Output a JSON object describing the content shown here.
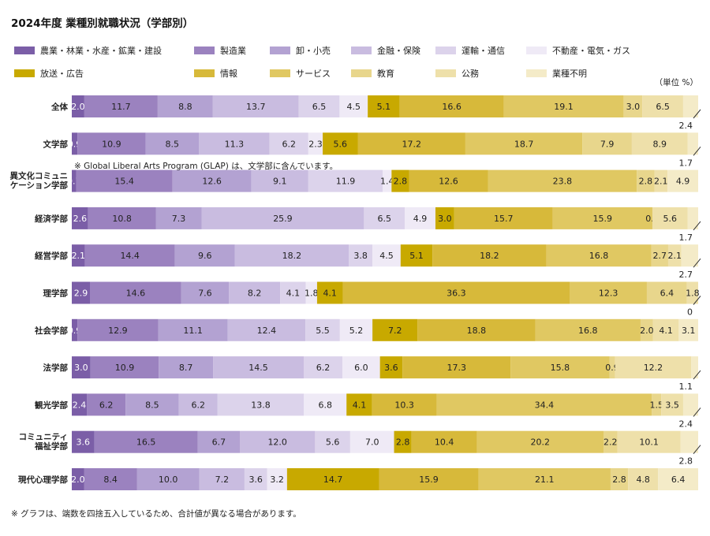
{
  "chart_data": {
    "type": "bar",
    "orientation": "horizontal",
    "stacked": true,
    "percent": true,
    "title": "2024年度 業種別就職状況（学部別）",
    "unit_label": "（単位 %）",
    "categories": [
      "全体",
      "文学部",
      "異文化コミュニケーション学部",
      "経済学部",
      "経営学部",
      "理学部",
      "社会学部",
      "法学部",
      "観光学部",
      "コミュニティ福祉学部",
      "現代心理学部"
    ],
    "category_lines": [
      [
        "全体"
      ],
      [
        "文学部"
      ],
      [
        "異文化コミュニ",
        "ケーション学部"
      ],
      [
        "経済学部"
      ],
      [
        "経営学部"
      ],
      [
        "理学部"
      ],
      [
        "社会学部"
      ],
      [
        "法学部"
      ],
      [
        "観光学部"
      ],
      [
        "コミュニティ",
        "福祉学部"
      ],
      [
        "現代心理学部"
      ]
    ],
    "series": [
      {
        "name": "農業・林業・水産・鉱業・建設",
        "color": "#7b5ea7",
        "text_color": "#ffffff",
        "values": [
          2.0,
          0.9,
          0.7,
          2.6,
          2.1,
          2.9,
          0.9,
          3.0,
          2.4,
          3.6,
          2.0
        ]
      },
      {
        "name": "製造業",
        "color": "#9b82bf",
        "text_color": "#222222",
        "values": [
          11.7,
          10.9,
          15.4,
          10.8,
          14.4,
          14.6,
          12.9,
          10.9,
          6.2,
          16.5,
          8.4
        ]
      },
      {
        "name": "卸・小売",
        "color": "#b3a2d2",
        "text_color": "#222222",
        "values": [
          8.8,
          8.5,
          12.6,
          7.3,
          9.6,
          7.6,
          11.1,
          8.7,
          8.5,
          6.7,
          10.0
        ]
      },
      {
        "name": "金融・保険",
        "color": "#c9bce0",
        "text_color": "#222222",
        "values": [
          13.7,
          11.3,
          9.1,
          25.9,
          18.2,
          8.2,
          12.4,
          14.5,
          6.2,
          12.0,
          7.2
        ]
      },
      {
        "name": "運輸・通信",
        "color": "#dcd3eb",
        "text_color": "#222222",
        "values": [
          6.5,
          6.2,
          11.9,
          6.5,
          3.8,
          4.1,
          5.5,
          6.2,
          13.8,
          5.6,
          3.6
        ]
      },
      {
        "name": "不動産・電気・ガス",
        "color": "#efeaf6",
        "text_color": "#222222",
        "values": [
          4.5,
          2.3,
          1.4,
          4.9,
          4.5,
          1.8,
          5.2,
          6.0,
          6.8,
          7.0,
          3.2
        ]
      },
      {
        "name": "放送・広告",
        "color": "#c8a900",
        "text_color": "#222222",
        "values": [
          5.1,
          5.6,
          2.8,
          3.0,
          5.1,
          4.1,
          7.2,
          3.6,
          4.1,
          2.8,
          14.7
        ]
      },
      {
        "name": "情報",
        "color": "#d7b93a",
        "text_color": "#222222",
        "values": [
          16.6,
          17.2,
          12.6,
          15.7,
          18.2,
          36.3,
          18.8,
          17.3,
          10.3,
          10.4,
          15.9
        ]
      },
      {
        "name": "サービス",
        "color": "#e0c862",
        "text_color": "#222222",
        "values": [
          19.1,
          18.7,
          23.8,
          15.9,
          16.8,
          12.3,
          16.8,
          15.8,
          34.4,
          20.2,
          21.1
        ]
      },
      {
        "name": "教育",
        "color": "#e8d68c",
        "text_color": "#222222",
        "values": [
          3.0,
          7.9,
          2.8,
          0.0,
          2.7,
          6.4,
          2.0,
          0.9,
          1.5,
          2.2,
          2.8
        ]
      },
      {
        "name": "公務",
        "color": "#eee0aa",
        "text_color": "#222222",
        "values": [
          6.5,
          8.9,
          2.1,
          5.6,
          2.1,
          1.8,
          4.1,
          12.2,
          3.5,
          10.1,
          4.8
        ]
      },
      {
        "name": "業種不明",
        "color": "#f4ebc8",
        "text_color": "#222222",
        "values": [
          2.4,
          1.7,
          4.9,
          1.7,
          2.7,
          0,
          3.1,
          1.1,
          2.4,
          2.8,
          6.4
        ]
      }
    ],
    "callouts": [
      {
        "row": 0,
        "series": 11,
        "text": "2.4"
      },
      {
        "row": 1,
        "series": 11,
        "text": "1.7"
      },
      {
        "row": 3,
        "series": 11,
        "text": "1.7"
      },
      {
        "row": 4,
        "series": 11,
        "text": "2.7"
      },
      {
        "row": 5,
        "series": 11,
        "text": "0"
      },
      {
        "row": 7,
        "series": 11,
        "text": "1.1"
      },
      {
        "row": 8,
        "series": 11,
        "text": "2.4"
      },
      {
        "row": 9,
        "series": 11,
        "text": "2.8"
      }
    ],
    "row_note": {
      "row": 1,
      "text": "※ Global Liberal Arts Program (GLAP) は、文学部に含んでいます。"
    },
    "footnote": "※ グラフは、端数を四捨五入しているため、合計値が異なる場合があります。",
    "xlim": [
      0,
      100
    ],
    "grid": false,
    "legend_position": "top"
  }
}
